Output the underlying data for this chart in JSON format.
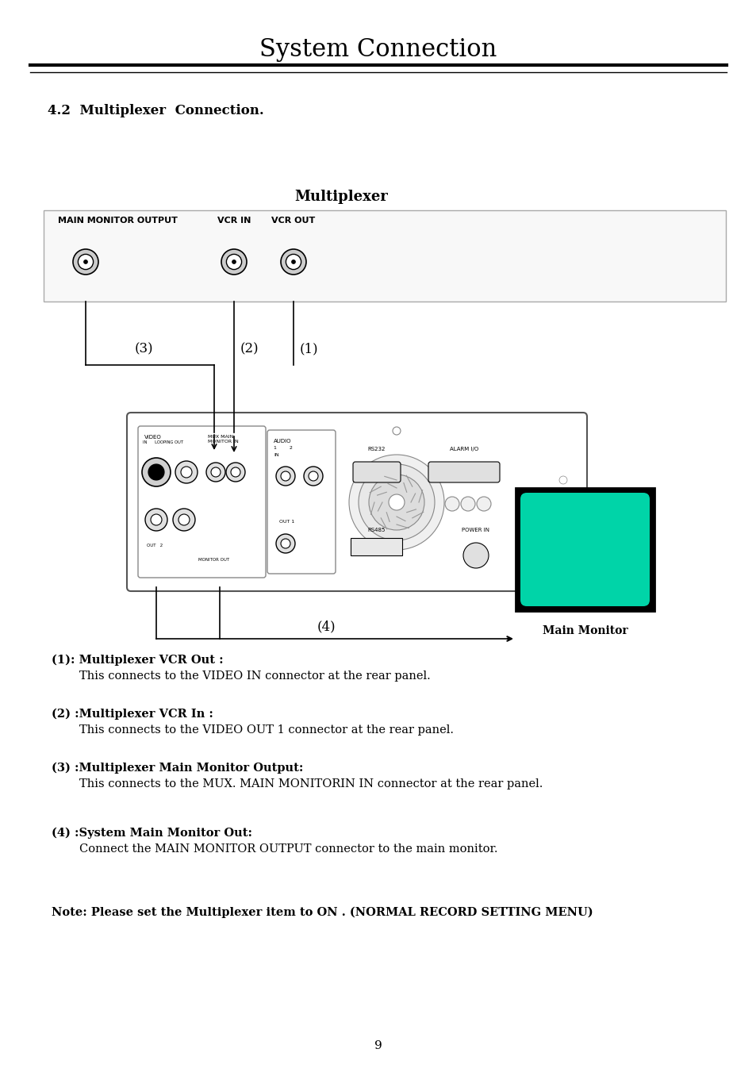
{
  "title": "System Connection",
  "section_title": "4.2  Multiplexer  Connection.",
  "diagram_title": "Multiplexer",
  "bg_color": "#ffffff",
  "text_color": "#000000",
  "multiplexer_box_label": "MAIN MONITOR OUTPUT",
  "vcr_in_label": "VCR IN",
  "vcr_out_label": "VCR OUT",
  "monitor_color": "#00d4a8",
  "monitor_label": "Main Monitor",
  "label1": "(1)",
  "label2": "(2)",
  "label3": "(3)",
  "label4": "(4)",
  "desc1_bold": "(1): Multiplexer VCR Out :",
  "desc1_text": "This connects to the VIDEO IN connector at the rear panel.",
  "desc2_bold": "(2) :Multiplexer VCR In :",
  "desc2_text": "This connects to the VIDEO OUT 1 connector at the rear panel.",
  "desc3_bold": "(3) :Multiplexer Main Monitor Output:",
  "desc3_text": "This connects to the MUX. MAIN MONITORIN IN connector at the rear panel.",
  "desc4_bold": "(4) :System Main Monitor Out:",
  "desc4_text": "Connect the MAIN MONITOR OUTPUT connector to the main monitor.",
  "note_text": "Note: Please set the Multiplexer item to ON . (NORMAL RECORD SETTING MENU)",
  "page_number": "9"
}
